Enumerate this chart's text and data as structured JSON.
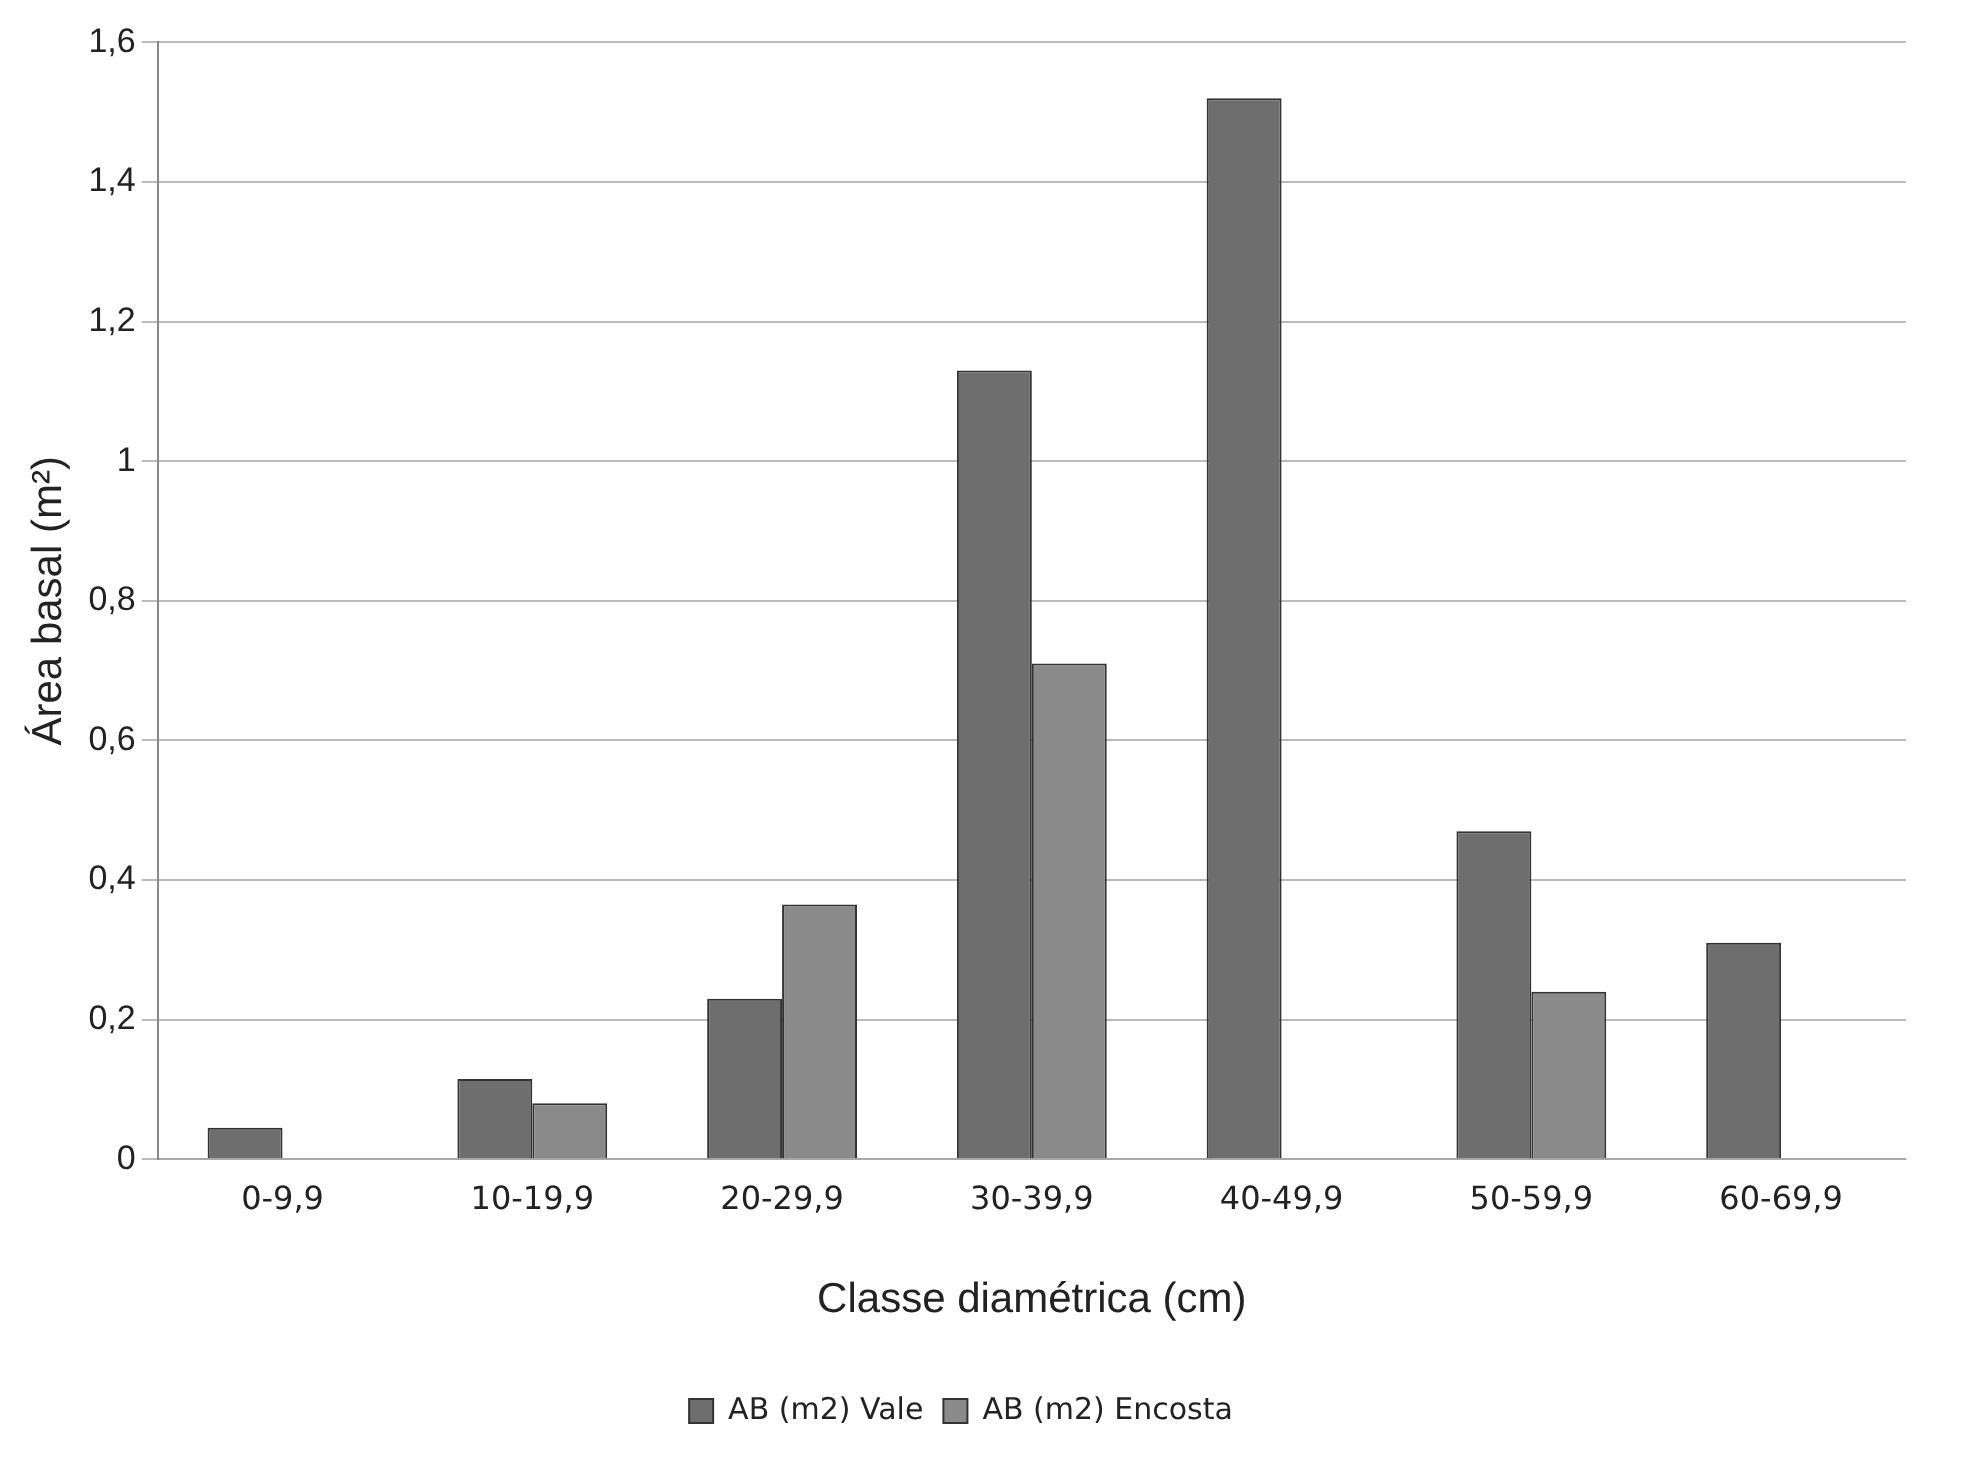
{
  "chart_data": {
    "type": "bar",
    "xlabel": "Classe diamétrica (cm)",
    "ylabel": "Área basal (m²)",
    "categories": [
      "0-9,9",
      "10-19,9",
      "20-29,9",
      "30-39,9",
      "40-49,9",
      "50-59,9",
      "60-69,9"
    ],
    "series": [
      {
        "name": "AB (m2) Vale",
        "color": "#6e6e6e",
        "values": [
          0.045,
          0.115,
          0.23,
          1.13,
          1.52,
          0.47,
          0.31
        ]
      },
      {
        "name": "AB (m2) Encosta",
        "color": "#8a8a8a",
        "values": [
          null,
          0.08,
          0.365,
          0.71,
          0,
          0.24,
          0
        ]
      }
    ],
    "ylim": [
      0,
      1.6
    ],
    "yticks": [
      0,
      {
        "value": 0.2,
        "label": "0,2"
      },
      {
        "value": 0.4,
        "label": "0,4"
      },
      {
        "value": 0.6,
        "label": "0,6"
      },
      {
        "value": 0.8,
        "label": "0,8"
      },
      1,
      {
        "value": 1.2,
        "label": "1,2"
      },
      {
        "value": 1.4,
        "label": "1,4"
      },
      {
        "value": 1.6,
        "label": "1,6"
      }
    ],
    "grid": "y",
    "legend": "bottom"
  }
}
